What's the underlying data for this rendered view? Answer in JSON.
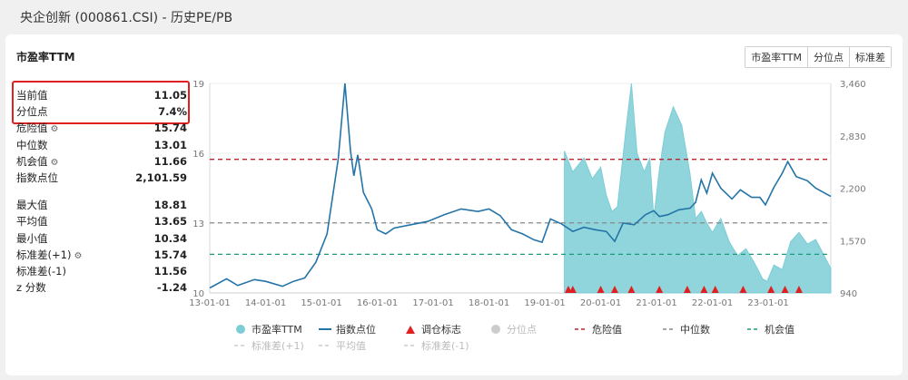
{
  "page": {
    "title": "央企创新 (000861.CSI) - 历史PE/PB"
  },
  "section": {
    "title": "市盈率TTM"
  },
  "tabs": [
    {
      "label": "市盈率TTM"
    },
    {
      "label": "分位点"
    },
    {
      "label": "标准差"
    }
  ],
  "stats_top": [
    {
      "label": "当前值",
      "value": "11.05",
      "gear": false
    },
    {
      "label": "分位点",
      "value": "7.4%",
      "gear": false
    },
    {
      "label": "危险值",
      "value": "15.74",
      "gear": true
    },
    {
      "label": "中位数",
      "value": "13.01",
      "gear": false
    },
    {
      "label": "机会值",
      "value": "11.66",
      "gear": true
    },
    {
      "label": "指数点位",
      "value": "2,101.59",
      "gear": false
    }
  ],
  "stats_bottom": [
    {
      "label": "最大值",
      "value": "18.81",
      "gear": false
    },
    {
      "label": "平均值",
      "value": "13.65",
      "gear": false
    },
    {
      "label": "最小值",
      "value": "10.34",
      "gear": false
    },
    {
      "label": "标准差(+1)",
      "value": "15.74",
      "gear": true
    },
    {
      "label": "标准差(-1)",
      "value": "11.56",
      "gear": false
    },
    {
      "label": "z 分数",
      "value": "-1.24",
      "gear": false
    }
  ],
  "chart_data": {
    "type": "line",
    "x_tick_labels": [
      "13-01-01",
      "14-01-01",
      "15-01-01",
      "16-01-01",
      "17-01-01",
      "18-01-01",
      "19-01-01",
      "20-01-01",
      "21-01-01",
      "22-01-01",
      "23-01-01"
    ],
    "y_left_ticks": [
      "10",
      "13",
      "16",
      "19"
    ],
    "y_right_ticks": [
      "940",
      "1,570",
      "2,200",
      "2,830",
      "3,460"
    ],
    "ylim_left": [
      10,
      19
    ],
    "ylim_right": [
      940,
      3460
    ],
    "xlim": [
      2013.0,
      2024.12
    ],
    "reference_lines": [
      {
        "name": "危险值",
        "value": 15.74,
        "color": "#c0202a"
      },
      {
        "name": "中位数",
        "value": 13.01,
        "color": "#888888"
      },
      {
        "name": "机会值",
        "value": 11.66,
        "color": "#1a9a7a"
      }
    ],
    "series": [
      {
        "name": "指数点位",
        "color": "#2474a8",
        "points": [
          [
            2013.0,
            1000
          ],
          [
            2013.3,
            1110
          ],
          [
            2013.5,
            1030
          ],
          [
            2013.8,
            1100
          ],
          [
            2014.0,
            1080
          ],
          [
            2014.3,
            1020
          ],
          [
            2014.5,
            1080
          ],
          [
            2014.7,
            1120
          ],
          [
            2014.9,
            1310
          ],
          [
            2015.1,
            1650
          ],
          [
            2015.3,
            2550
          ],
          [
            2015.42,
            3460
          ],
          [
            2015.52,
            2650
          ],
          [
            2015.58,
            2350
          ],
          [
            2015.65,
            2600
          ],
          [
            2015.75,
            2150
          ],
          [
            2015.9,
            1950
          ],
          [
            2016.0,
            1700
          ],
          [
            2016.15,
            1650
          ],
          [
            2016.3,
            1720
          ],
          [
            2016.6,
            1760
          ],
          [
            2016.9,
            1800
          ],
          [
            2017.2,
            1880
          ],
          [
            2017.5,
            1950
          ],
          [
            2017.8,
            1920
          ],
          [
            2018.0,
            1950
          ],
          [
            2018.2,
            1870
          ],
          [
            2018.4,
            1700
          ],
          [
            2018.6,
            1650
          ],
          [
            2018.8,
            1580
          ],
          [
            2018.95,
            1550
          ],
          [
            2019.1,
            1830
          ],
          [
            2019.3,
            1770
          ],
          [
            2019.5,
            1680
          ],
          [
            2019.7,
            1730
          ],
          [
            2019.9,
            1700
          ],
          [
            2020.1,
            1680
          ],
          [
            2020.25,
            1560
          ],
          [
            2020.4,
            1780
          ],
          [
            2020.6,
            1760
          ],
          [
            2020.8,
            1880
          ],
          [
            2020.95,
            1930
          ],
          [
            2021.05,
            1860
          ],
          [
            2021.2,
            1880
          ],
          [
            2021.4,
            1940
          ],
          [
            2021.6,
            1960
          ],
          [
            2021.7,
            2030
          ],
          [
            2021.8,
            2300
          ],
          [
            2021.9,
            2140
          ],
          [
            2022.0,
            2380
          ],
          [
            2022.15,
            2200
          ],
          [
            2022.35,
            2070
          ],
          [
            2022.5,
            2180
          ],
          [
            2022.7,
            2090
          ],
          [
            2022.85,
            2090
          ],
          [
            2022.95,
            2000
          ],
          [
            2023.1,
            2210
          ],
          [
            2023.25,
            2380
          ],
          [
            2023.35,
            2520
          ],
          [
            2023.5,
            2340
          ],
          [
            2023.7,
            2290
          ],
          [
            2023.85,
            2200
          ],
          [
            2024.12,
            2101
          ]
        ]
      },
      {
        "name": "市盈率TTM",
        "color": "#7dcdd6",
        "points": [
          [
            2019.35,
            16.1
          ],
          [
            2019.5,
            15.2
          ],
          [
            2019.7,
            15.8
          ],
          [
            2019.85,
            14.9
          ],
          [
            2020.0,
            15.4
          ],
          [
            2020.1,
            14.2
          ],
          [
            2020.2,
            13.5
          ],
          [
            2020.3,
            13.7
          ],
          [
            2020.45,
            17.0
          ],
          [
            2020.55,
            19.0
          ],
          [
            2020.65,
            16.0
          ],
          [
            2020.78,
            15.2
          ],
          [
            2020.88,
            15.8
          ],
          [
            2020.95,
            13.2
          ],
          [
            2021.05,
            15.3
          ],
          [
            2021.15,
            16.9
          ],
          [
            2021.3,
            18.0
          ],
          [
            2021.45,
            17.2
          ],
          [
            2021.6,
            15.1
          ],
          [
            2021.7,
            13.2
          ],
          [
            2021.8,
            13.5
          ],
          [
            2021.9,
            13.0
          ],
          [
            2022.0,
            12.6
          ],
          [
            2022.15,
            13.2
          ],
          [
            2022.3,
            12.2
          ],
          [
            2022.45,
            11.6
          ],
          [
            2022.6,
            11.9
          ],
          [
            2022.75,
            11.3
          ],
          [
            2022.9,
            10.6
          ],
          [
            2022.98,
            10.5
          ],
          [
            2023.1,
            11.2
          ],
          [
            2023.25,
            11.0
          ],
          [
            2023.4,
            12.2
          ],
          [
            2023.55,
            12.6
          ],
          [
            2023.7,
            12.1
          ],
          [
            2023.85,
            12.3
          ],
          [
            2024.12,
            11.05
          ]
        ]
      }
    ],
    "rebalance_markers": [
      2019.42,
      2019.5,
      2020.0,
      2020.25,
      2020.55,
      2021.05,
      2021.55,
      2021.85,
      2022.05,
      2022.55,
      2023.05,
      2023.3,
      2023.55
    ],
    "legend": [
      {
        "name": "市盈率TTM",
        "color": "#7dcdd6",
        "symbol": "circle"
      },
      {
        "name": "指数点位",
        "color": "#2474a8",
        "symbol": "line"
      },
      {
        "name": "调仓标志",
        "color": "#e02020",
        "symbol": "triangle"
      },
      {
        "name": "分位点",
        "color": "#cccccc",
        "symbol": "circle"
      },
      {
        "name": "危险值",
        "color": "#c0202a",
        "symbol": "dash"
      },
      {
        "name": "中位数",
        "color": "#888888",
        "symbol": "dash"
      },
      {
        "name": "机会值",
        "color": "#1a9a7a",
        "symbol": "dash"
      },
      {
        "name": "标准差(+1)",
        "color": "#cccccc",
        "symbol": "dash"
      },
      {
        "name": "平均值",
        "color": "#cccccc",
        "symbol": "dash"
      },
      {
        "name": "标准差(-1)",
        "color": "#cccccc",
        "symbol": "dash"
      }
    ]
  }
}
